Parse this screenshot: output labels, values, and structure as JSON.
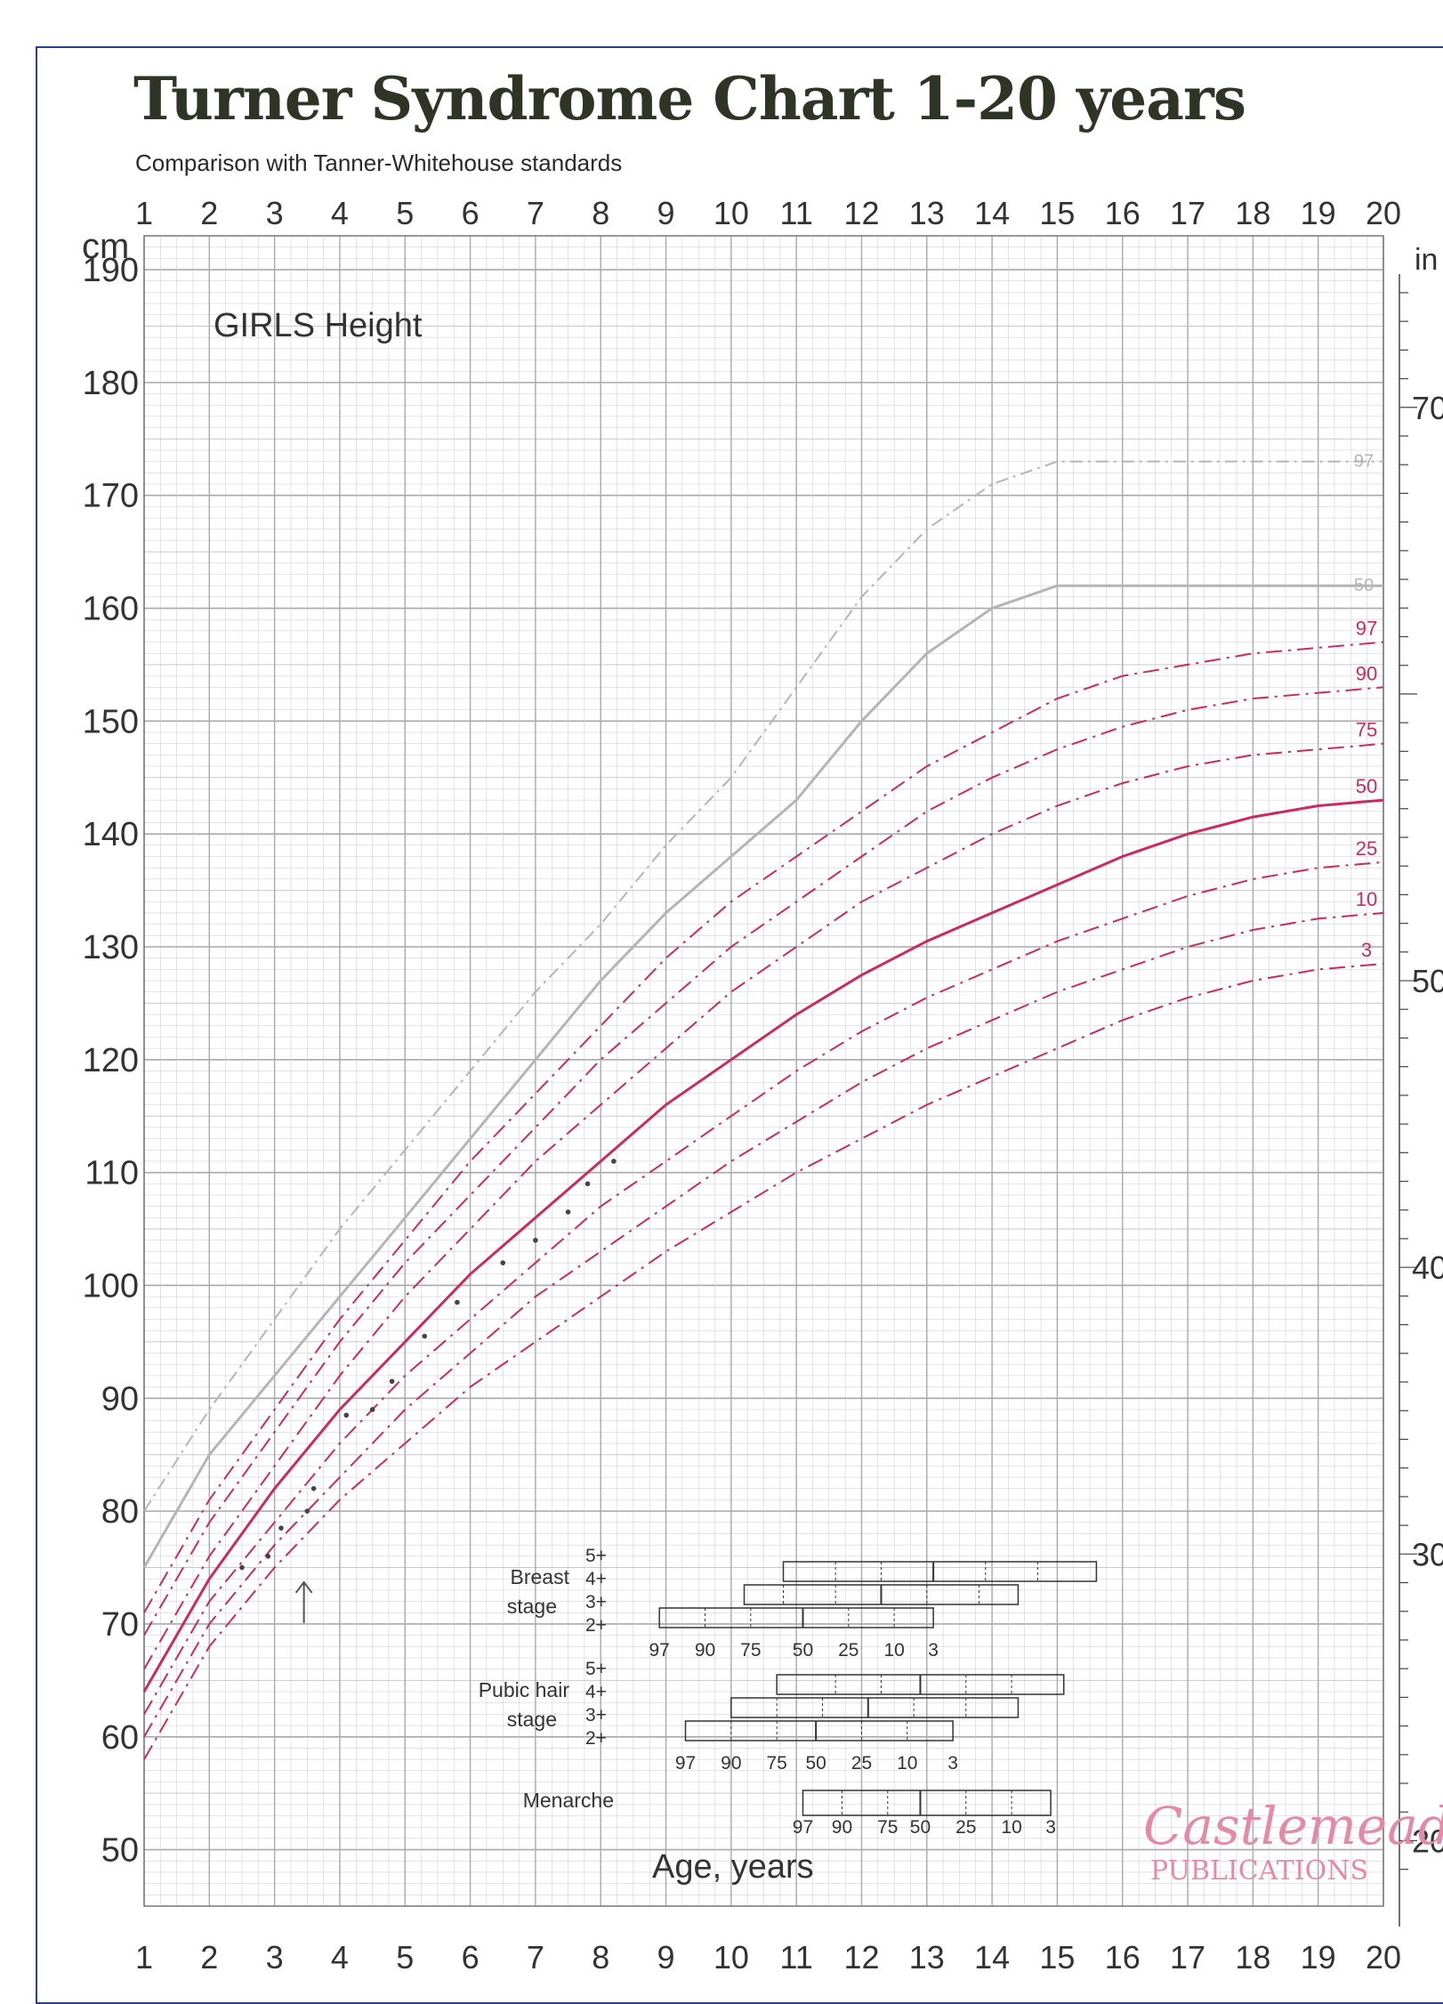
{
  "title": "Turner Syndrome Chart 1-20 years",
  "subtitle": "Comparison with Tanner-Whitehouse standards",
  "chart_data": {
    "type": "line",
    "title": "GIRLS Height",
    "ylabel": "cm",
    "ylabel_right": "in",
    "xlabel": "Age, years",
    "xlim": [
      1,
      20
    ],
    "ylim": [
      45,
      193
    ],
    "x_ticks": [
      1,
      2,
      3,
      4,
      5,
      6,
      7,
      8,
      9,
      10,
      11,
      12,
      13,
      14,
      15,
      16,
      17,
      18,
      19,
      20
    ],
    "y_ticks": [
      50,
      60,
      70,
      80,
      90,
      100,
      110,
      120,
      130,
      140,
      150,
      160,
      170,
      180,
      190
    ],
    "inch_ticks": [
      20,
      30,
      40,
      50,
      70
    ],
    "grid": true,
    "normal_series": [
      {
        "name": "97",
        "x": [
          1,
          2,
          3,
          4,
          5,
          6,
          7,
          8,
          9,
          10,
          11,
          12,
          13,
          14,
          15,
          16,
          17,
          18,
          19,
          20
        ],
        "y": [
          80,
          89,
          97,
          105,
          112,
          119,
          126,
          132,
          139,
          145,
          153,
          161,
          167,
          171,
          173,
          173,
          173,
          173,
          173,
          173
        ]
      },
      {
        "name": "50",
        "x": [
          1,
          2,
          3,
          4,
          5,
          6,
          7,
          8,
          9,
          10,
          11,
          12,
          13,
          14,
          15,
          16,
          17,
          18,
          19,
          20
        ],
        "y": [
          75,
          85,
          92,
          99,
          106,
          113,
          120,
          127,
          133,
          138,
          143,
          150,
          156,
          160,
          162,
          162,
          162,
          162,
          162,
          162
        ]
      }
    ],
    "series": [
      {
        "name": "97",
        "x": [
          1,
          2,
          3,
          4,
          5,
          6,
          7,
          8,
          9,
          10,
          11,
          12,
          13,
          14,
          15,
          16,
          17,
          18,
          19,
          20
        ],
        "y": [
          71,
          81,
          89,
          97,
          104,
          111,
          117,
          123,
          129,
          134,
          138,
          142,
          146,
          149,
          152,
          154,
          155,
          156,
          156.5,
          157
        ]
      },
      {
        "name": "90",
        "x": [
          1,
          2,
          3,
          4,
          5,
          6,
          7,
          8,
          9,
          10,
          11,
          12,
          13,
          14,
          15,
          16,
          17,
          18,
          19,
          20
        ],
        "y": [
          69,
          79,
          87,
          95,
          102,
          108,
          114,
          120,
          125,
          130,
          134,
          138,
          142,
          145,
          147.5,
          149.5,
          151,
          152,
          152.5,
          153
        ]
      },
      {
        "name": "75",
        "x": [
          1,
          2,
          3,
          4,
          5,
          6,
          7,
          8,
          9,
          10,
          11,
          12,
          13,
          14,
          15,
          16,
          17,
          18,
          19,
          20
        ],
        "y": [
          66,
          76,
          84,
          92,
          99,
          105,
          111,
          116,
          121,
          126,
          130,
          134,
          137,
          140,
          142.5,
          144.5,
          146,
          147,
          147.5,
          148
        ]
      },
      {
        "name": "50",
        "x": [
          1,
          2,
          3,
          4,
          5,
          6,
          7,
          8,
          9,
          10,
          11,
          12,
          13,
          14,
          15,
          16,
          17,
          18,
          19,
          20
        ],
        "y": [
          64,
          74,
          82,
          89,
          95,
          101,
          106,
          111,
          116,
          120,
          124,
          127.5,
          130.5,
          133,
          135.5,
          138,
          140,
          141.5,
          142.5,
          143
        ]
      },
      {
        "name": "25",
        "x": [
          1,
          2,
          3,
          4,
          5,
          6,
          7,
          8,
          9,
          10,
          11,
          12,
          13,
          14,
          15,
          16,
          17,
          18,
          19,
          20
        ],
        "y": [
          62,
          72,
          79,
          86,
          92,
          97,
          102,
          107,
          111,
          115,
          119,
          122.5,
          125.5,
          128,
          130.5,
          132.5,
          134.5,
          136,
          137,
          137.5
        ]
      },
      {
        "name": "10",
        "x": [
          1,
          2,
          3,
          4,
          5,
          6,
          7,
          8,
          9,
          10,
          11,
          12,
          13,
          14,
          15,
          16,
          17,
          18,
          19,
          20
        ],
        "y": [
          60,
          70,
          77,
          83,
          89,
          94,
          99,
          103,
          107,
          111,
          114.5,
          118,
          121,
          123.5,
          126,
          128,
          130,
          131.5,
          132.5,
          133
        ]
      },
      {
        "name": "3",
        "x": [
          1,
          2,
          3,
          4,
          5,
          6,
          7,
          8,
          9,
          10,
          11,
          12,
          13,
          14,
          15,
          16,
          17,
          18,
          19,
          20
        ],
        "y": [
          58,
          68,
          75,
          81,
          86,
          91,
          95,
          99,
          103,
          106.5,
          110,
          113,
          116,
          118.5,
          121,
          123.5,
          125.5,
          127,
          128,
          128.5
        ]
      }
    ],
    "patient_points": {
      "x": [
        2.5,
        2.9,
        3.1,
        3.5,
        3.6,
        4.1,
        4.5,
        4.8,
        5.3,
        5.8,
        6.5,
        7,
        7.5,
        7.8,
        8.2
      ],
      "y": [
        75,
        76,
        78.5,
        80,
        82,
        88.5,
        89,
        91.5,
        95.5,
        98.5,
        102,
        104,
        106.5,
        109,
        111
      ]
    },
    "colors": {
      "turner": "#cc2a5e",
      "normal": "#b5b5b5",
      "grid": "#c9c9c9",
      "grid_major": "#a9a9a9"
    },
    "breast_stage": {
      "label_line1": "Breast",
      "label_line2": "stage",
      "stages": [
        "5+",
        "4+",
        "3+",
        "2+"
      ],
      "scale": [
        "97",
        "90",
        "75",
        "50",
        "25",
        "10",
        "3"
      ],
      "bars": [
        {
          "stage": "4+",
          "centiles_age": [
            10.8,
            11.6,
            12.3,
            13.1,
            13.9,
            14.7,
            15.6
          ]
        },
        {
          "stage": "3+",
          "centiles_age": [
            10.2,
            10.8,
            11.6,
            12.3,
            13.0,
            13.8,
            14.4
          ]
        },
        {
          "stage": "2+",
          "centiles_age": [
            8.9,
            9.6,
            10.3,
            11.1,
            11.8,
            12.5,
            13.1
          ]
        }
      ]
    },
    "pubic_hair_stage": {
      "label_line1": "Pubic hair",
      "label_line2": "stage",
      "stages": [
        "5+",
        "4+",
        "3+",
        "2+"
      ],
      "scale": [
        "97",
        "90",
        "75",
        "50",
        "25",
        "10",
        "3"
      ],
      "bars": [
        {
          "stage": "4+",
          "centiles_age": [
            10.7,
            11.6,
            12.3,
            12.9,
            13.6,
            14.3,
            15.1
          ]
        },
        {
          "stage": "3+",
          "centiles_age": [
            10.0,
            10.7,
            11.4,
            12.1,
            12.8,
            13.6,
            14.4
          ]
        },
        {
          "stage": "2+",
          "centiles_age": [
            9.3,
            10.0,
            10.7,
            11.3,
            12.0,
            12.7,
            13.4
          ]
        }
      ]
    },
    "menarche": {
      "label": "Menarche",
      "scale": [
        "97",
        "90",
        "75",
        "50",
        "25",
        "10",
        "3"
      ],
      "centiles_age": [
        11.1,
        11.7,
        12.4,
        12.9,
        13.6,
        14.3,
        14.9
      ]
    }
  },
  "publisher": {
    "line1": "Castlemead",
    "line2": "PUBLICATIONS"
  }
}
